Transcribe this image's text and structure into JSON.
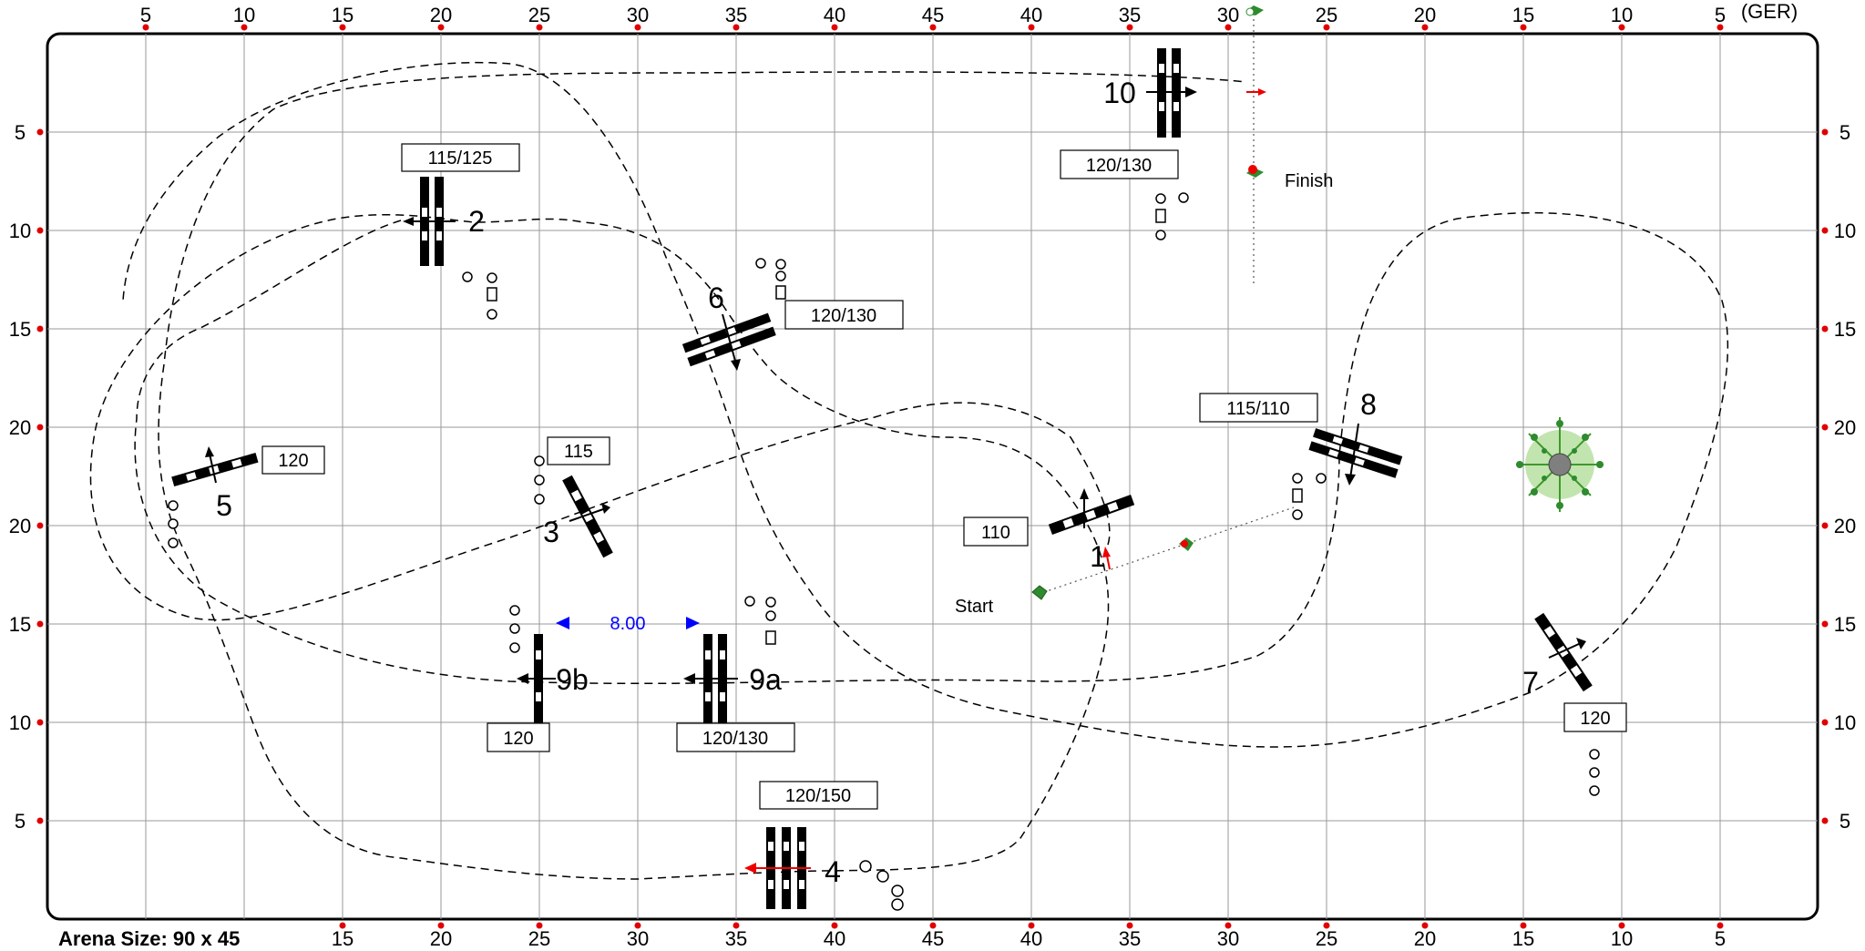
{
  "corner_label": "(GER)",
  "arena_size": "Arena Size: 90 x 45",
  "top_scale": [
    "5",
    "10",
    "15",
    "20",
    "25",
    "30",
    "35",
    "40",
    "45",
    "40",
    "35",
    "30",
    "25",
    "20",
    "15",
    "10",
    "5"
  ],
  "bottom_scale": [
    "15",
    "20",
    "25",
    "30",
    "35",
    "40",
    "45",
    "40",
    "35",
    "30",
    "25",
    "20",
    "15",
    "10",
    "5"
  ],
  "side_scale": [
    "5",
    "10",
    "15",
    "20",
    "20",
    "15",
    "10",
    "5"
  ],
  "start_label": "Start",
  "finish_label": "Finish",
  "distance_label": "8.00",
  "fences": {
    "f1": {
      "number": "1",
      "height": "110"
    },
    "f2": {
      "number": "2",
      "height": "115/125"
    },
    "f3": {
      "number": "3",
      "height": "115"
    },
    "f4": {
      "number": "4",
      "height": "120/150"
    },
    "f5": {
      "number": "5",
      "height": "120"
    },
    "f6": {
      "number": "6",
      "height": "120/130"
    },
    "f7": {
      "number": "7",
      "height": "120"
    },
    "f8": {
      "number": "8",
      "height": "115/110"
    },
    "f9a": {
      "number": "9a",
      "height": "120/130"
    },
    "f9b": {
      "number": "9b",
      "height": "120"
    },
    "f10": {
      "number": "10",
      "height": "120/130"
    }
  },
  "colors": {
    "route": "#000000",
    "distance": "#0000ff",
    "start_flag": "#2e8b2e",
    "finish_flag": "#cc0000"
  }
}
